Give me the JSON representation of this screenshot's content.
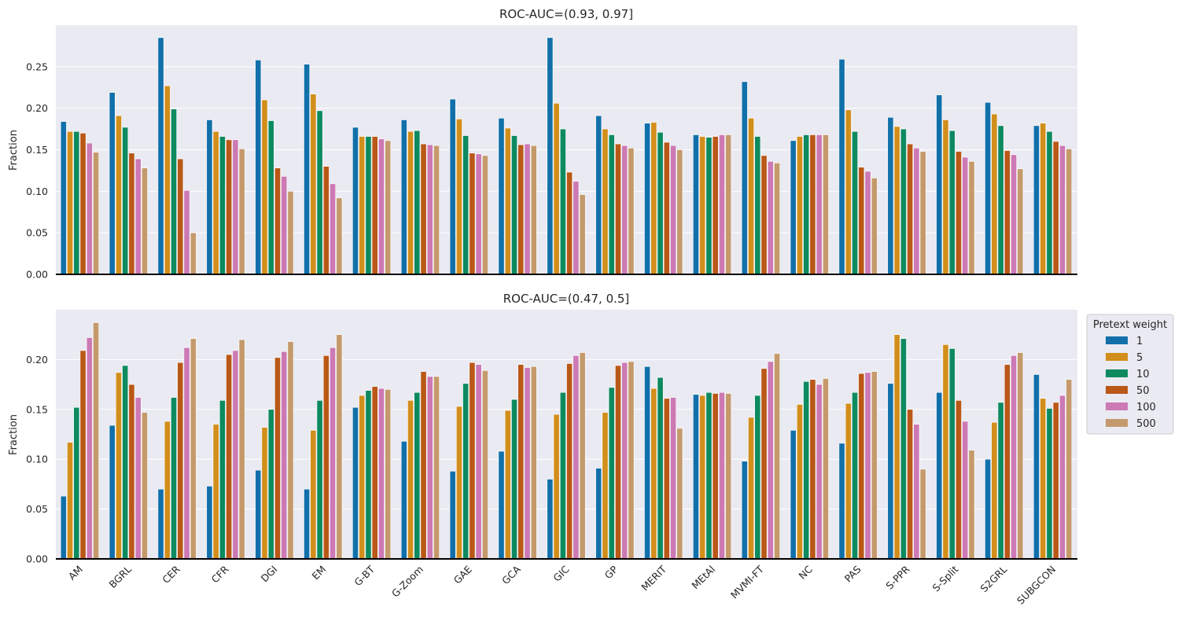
{
  "figure": {
    "legend": {
      "title": "Pretext weight",
      "placement": "right of lower panel"
    },
    "background": "#eaeaf2",
    "grid": "#ffffff"
  },
  "chart_data": [
    {
      "type": "bar",
      "title": "ROC-AUC=(0.93, 0.97]",
      "xlabel": "",
      "ylabel": "Fraction",
      "ylim": [
        0,
        0.3
      ],
      "yticks": [
        "0.00",
        "0.05",
        "0.10",
        "0.15",
        "0.20",
        "0.25"
      ],
      "grid": true,
      "categories": [
        "AM",
        "BGRL",
        "CER",
        "CFR",
        "DGI",
        "EM",
        "G-BT",
        "G-Zoom",
        "GAE",
        "GCA",
        "GIC",
        "GP",
        "MERIT",
        "MEtAl",
        "MVMI-FT",
        "NC",
        "PAS",
        "S-PPR",
        "S-Split",
        "S2GRL",
        "SUBGCON"
      ],
      "series": [
        {
          "name": "1",
          "color": "#1170aa",
          "values": [
            0.184,
            0.219,
            0.285,
            0.186,
            0.258,
            0.253,
            0.177,
            0.186,
            0.211,
            0.188,
            0.285,
            0.191,
            0.182,
            0.168,
            0.232,
            0.161,
            0.259,
            0.189,
            0.216,
            0.207,
            0.179
          ]
        },
        {
          "name": "5",
          "color": "#d28e1b",
          "values": [
            0.172,
            0.191,
            0.227,
            0.172,
            0.21,
            0.217,
            0.166,
            0.172,
            0.187,
            0.176,
            0.206,
            0.175,
            0.183,
            0.166,
            0.188,
            0.166,
            0.198,
            0.178,
            0.186,
            0.193,
            0.182
          ]
        },
        {
          "name": "10",
          "color": "#0d8a5f",
          "values": [
            0.172,
            0.177,
            0.199,
            0.166,
            0.185,
            0.197,
            0.166,
            0.173,
            0.167,
            0.167,
            0.175,
            0.168,
            0.171,
            0.165,
            0.166,
            0.168,
            0.172,
            0.175,
            0.173,
            0.179,
            0.172
          ]
        },
        {
          "name": "50",
          "color": "#b95817",
          "values": [
            0.17,
            0.146,
            0.139,
            0.162,
            0.128,
            0.13,
            0.166,
            0.157,
            0.146,
            0.156,
            0.123,
            0.157,
            0.159,
            0.166,
            0.143,
            0.168,
            0.129,
            0.157,
            0.148,
            0.149,
            0.16
          ]
        },
        {
          "name": "100",
          "color": "#cc79b4",
          "values": [
            0.158,
            0.139,
            0.101,
            0.162,
            0.118,
            0.109,
            0.163,
            0.156,
            0.145,
            0.157,
            0.112,
            0.155,
            0.155,
            0.168,
            0.136,
            0.168,
            0.124,
            0.152,
            0.141,
            0.144,
            0.155
          ]
        },
        {
          "name": "500",
          "color": "#c49a6c",
          "values": [
            0.147,
            0.128,
            0.05,
            0.151,
            0.1,
            0.092,
            0.161,
            0.155,
            0.143,
            0.155,
            0.096,
            0.152,
            0.15,
            0.168,
            0.134,
            0.168,
            0.116,
            0.148,
            0.136,
            0.127,
            0.151
          ]
        }
      ]
    },
    {
      "type": "bar",
      "title": "ROC-AUC=(0.47, 0.5]",
      "xlabel": "",
      "ylabel": "Fraction",
      "ylim": [
        0,
        0.25
      ],
      "yticks": [
        "0.00",
        "0.05",
        "0.10",
        "0.15",
        "0.20"
      ],
      "grid": true,
      "categories": [
        "AM",
        "BGRL",
        "CER",
        "CFR",
        "DGI",
        "EM",
        "G-BT",
        "G-Zoom",
        "GAE",
        "GCA",
        "GIC",
        "GP",
        "MERIT",
        "MEtAl",
        "MVMI-FT",
        "NC",
        "PAS",
        "S-PPR",
        "S-Split",
        "S2GRL",
        "SUBGCON"
      ],
      "series": [
        {
          "name": "1",
          "color": "#1170aa",
          "values": [
            0.063,
            0.134,
            0.07,
            0.073,
            0.089,
            0.07,
            0.152,
            0.118,
            0.088,
            0.108,
            0.08,
            0.091,
            0.193,
            0.165,
            0.098,
            0.129,
            0.116,
            0.176,
            0.167,
            0.1,
            0.185
          ]
        },
        {
          "name": "5",
          "color": "#d28e1b",
          "values": [
            0.117,
            0.187,
            0.138,
            0.135,
            0.132,
            0.129,
            0.164,
            0.159,
            0.153,
            0.149,
            0.145,
            0.147,
            0.171,
            0.164,
            0.142,
            0.155,
            0.156,
            0.225,
            0.215,
            0.137,
            0.161
          ]
        },
        {
          "name": "10",
          "color": "#0d8a5f",
          "values": [
            0.152,
            0.194,
            0.162,
            0.159,
            0.15,
            0.159,
            0.169,
            0.167,
            0.176,
            0.16,
            0.167,
            0.172,
            0.182,
            0.167,
            0.164,
            0.178,
            0.167,
            0.221,
            0.211,
            0.157,
            0.151
          ]
        },
        {
          "name": "50",
          "color": "#b95817",
          "values": [
            0.209,
            0.175,
            0.197,
            0.205,
            0.202,
            0.204,
            0.173,
            0.188,
            0.197,
            0.195,
            0.196,
            0.194,
            0.161,
            0.166,
            0.191,
            0.18,
            0.186,
            0.15,
            0.159,
            0.195,
            0.157
          ]
        },
        {
          "name": "100",
          "color": "#cc79b4",
          "values": [
            0.222,
            0.162,
            0.212,
            0.209,
            0.208,
            0.212,
            0.171,
            0.183,
            0.195,
            0.192,
            0.204,
            0.197,
            0.162,
            0.167,
            0.198,
            0.175,
            0.187,
            0.135,
            0.138,
            0.204,
            0.164
          ]
        },
        {
          "name": "500",
          "color": "#c49a6c",
          "values": [
            0.237,
            0.147,
            0.221,
            0.22,
            0.218,
            0.225,
            0.17,
            0.183,
            0.189,
            0.193,
            0.207,
            0.198,
            0.131,
            0.166,
            0.206,
            0.181,
            0.188,
            0.09,
            0.109,
            0.207,
            0.18
          ]
        }
      ]
    }
  ]
}
